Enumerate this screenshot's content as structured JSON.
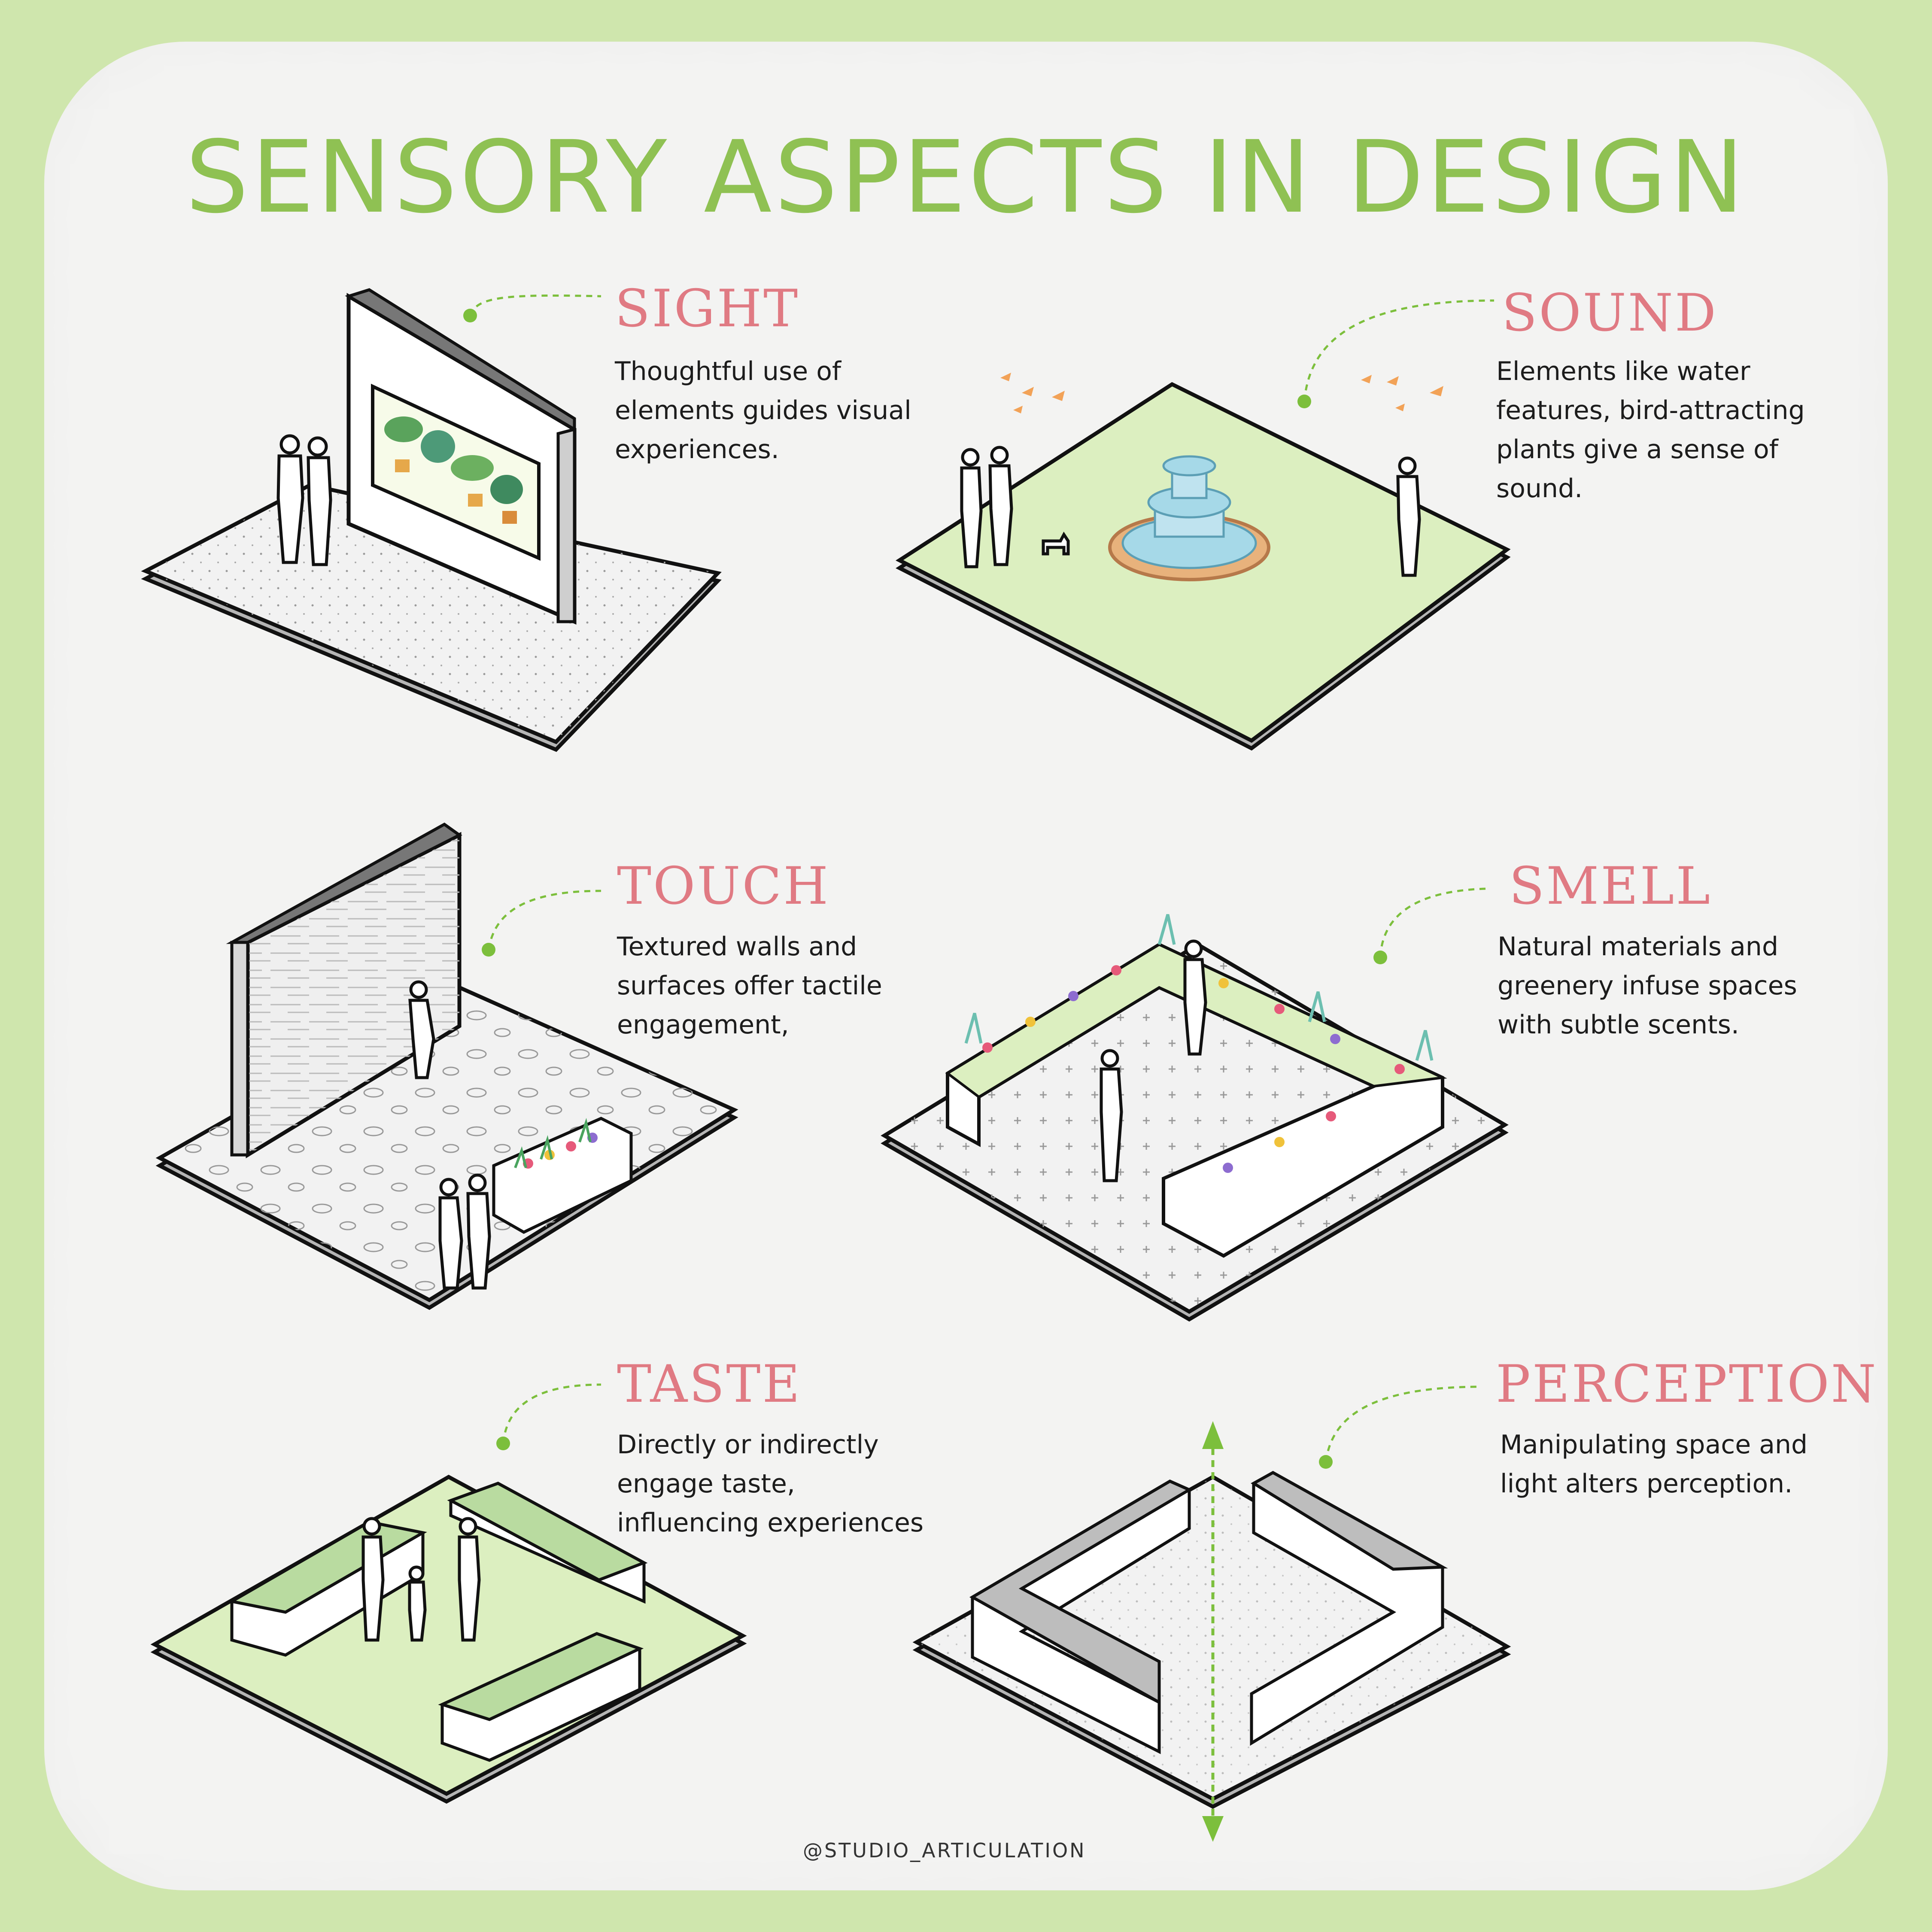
{
  "title": "SENSORY ASPECTS IN DESIGN",
  "sections": [
    {
      "heading": "SIGHT",
      "text": "Thoughtful use of elements guides visual experiences."
    },
    {
      "heading": "SOUND",
      "text": "Elements like water features, bird-attracting plants give a sense of sound."
    },
    {
      "heading": "TOUCH",
      "text": "Textured walls and surfaces offer tactile engagement,"
    },
    {
      "heading": "SMELL",
      "text": "Natural materials and greenery infuse spaces with subtle scents."
    },
    {
      "heading": "TASTE",
      "text": "Directly or indirectly engage taste, influencing experiences"
    },
    {
      "heading": "PERCEPTION",
      "text": "Manipulating space and light alters perception."
    }
  ],
  "credit": "@STUDIO_ARTICULATION",
  "colors": {
    "background": "#cfe6ad",
    "card": "#f3f3f2",
    "title": "#8fc153",
    "heading": "#e07a83",
    "grass": "#dcefc0",
    "accent_green": "#7cbf3c"
  }
}
